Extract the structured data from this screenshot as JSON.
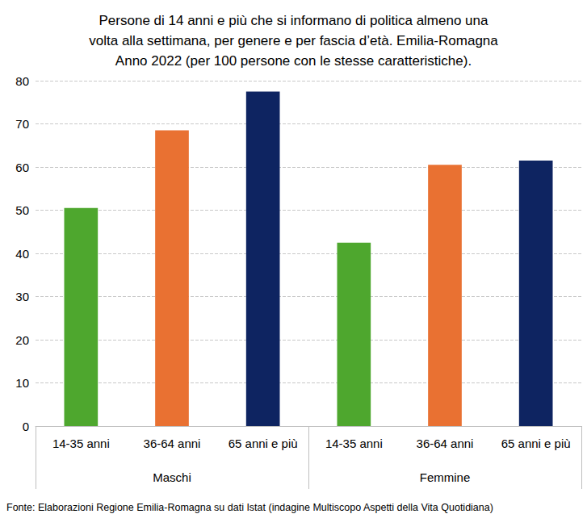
{
  "chart_data": {
    "type": "bar",
    "title": "Persone di 14 anni e più che si informano di politica almeno una\nvolta alla settimana, per genere e per fascia d’età. Emilia-Romagna\nAnno 2022 (per 100 persone con le stesse caratteristiche).",
    "categories": [
      "14-35 anni",
      "36-64 anni",
      "65 anni e più",
      "14-35 anni",
      "36-64 anni",
      "65 anni e più"
    ],
    "groups": [
      "Maschi",
      "Femmine"
    ],
    "values": [
      50.5,
      68.5,
      77.5,
      42.5,
      60.5,
      61.5
    ],
    "colors": [
      "#4ea72e",
      "#e97132",
      "#0e2461",
      "#4ea72e",
      "#e97132",
      "#0e2461"
    ],
    "ylim": [
      0,
      80
    ],
    "yticks": [
      0,
      10,
      20,
      30,
      40,
      50,
      60,
      70,
      80
    ],
    "grid": true,
    "source": "Fonte: Elaborazioni Regione Emilia-Romagna su dati Istat (indagine Multiscopo Aspetti della Vita Quotidiana)"
  }
}
